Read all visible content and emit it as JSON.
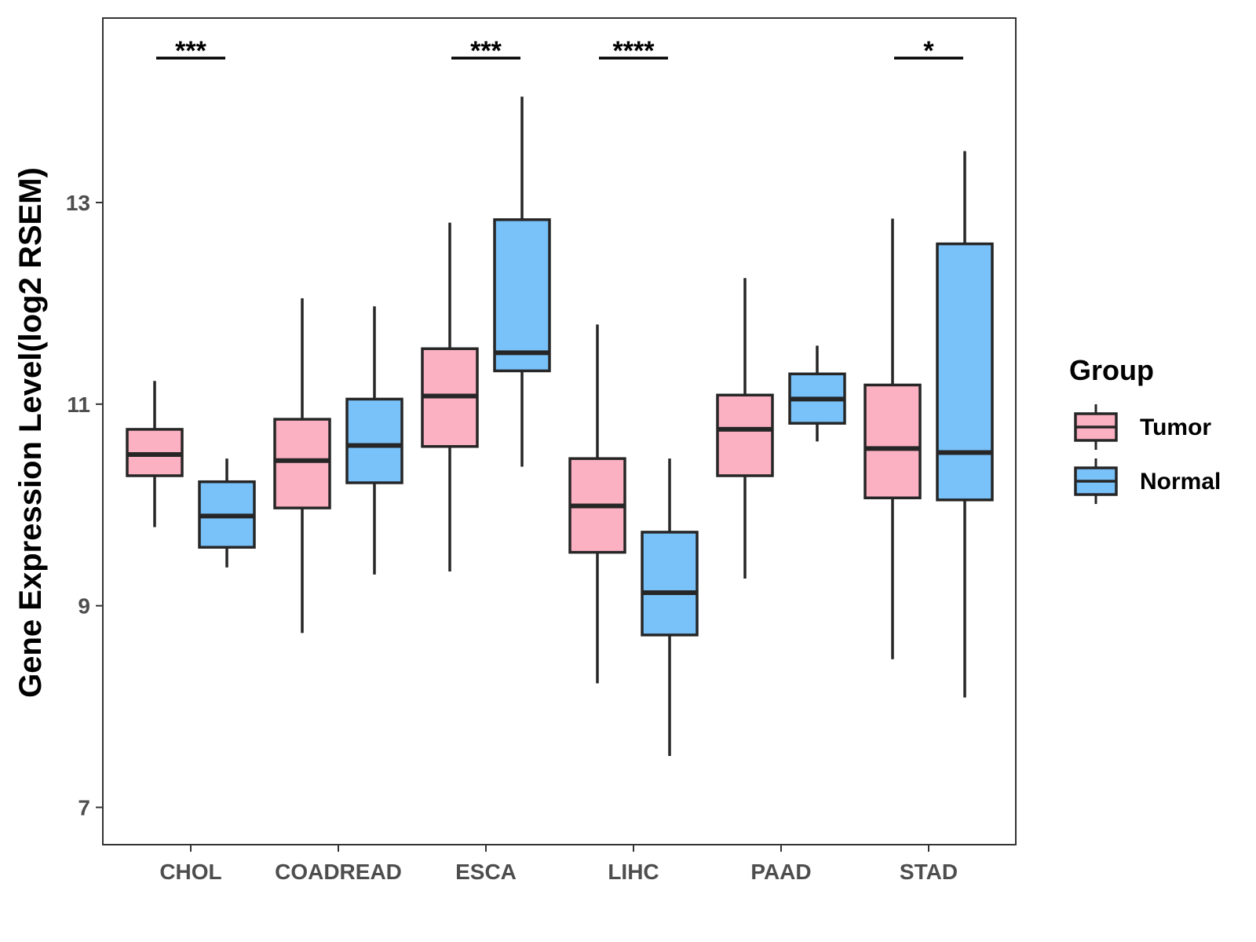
{
  "chart_data": {
    "type": "box",
    "ylabel": "Gene Expression Level(log2 RSEM)",
    "xlabel": "",
    "ylim": [
      6.63,
      14.83
    ],
    "yticks": [
      7,
      9,
      11,
      13
    ],
    "categories": [
      "CHOL",
      "COADREAD",
      "ESCA",
      "LIHC",
      "PAAD",
      "STAD"
    ],
    "legend": {
      "title": "Group",
      "placement": "right",
      "entries": [
        "Tumor",
        "Normal"
      ]
    },
    "colors": {
      "Tumor": "#FBB1C2",
      "Normal": "#79C1F9",
      "outline": "#262626"
    },
    "series": [
      {
        "name": "Tumor",
        "boxes": [
          {
            "category": "CHOL",
            "min": 9.78,
            "q1": 10.29,
            "median": 10.5,
            "q3": 10.75,
            "max": 11.23
          },
          {
            "category": "COADREAD",
            "min": 8.73,
            "q1": 9.97,
            "median": 10.44,
            "q3": 10.85,
            "max": 12.05
          },
          {
            "category": "ESCA",
            "min": 9.34,
            "q1": 10.58,
            "median": 11.08,
            "q3": 11.55,
            "max": 12.8
          },
          {
            "category": "LIHC",
            "min": 8.23,
            "q1": 9.53,
            "median": 9.99,
            "q3": 10.46,
            "max": 11.79
          },
          {
            "category": "PAAD",
            "min": 9.27,
            "q1": 10.29,
            "median": 10.75,
            "q3": 11.09,
            "max": 12.25
          },
          {
            "category": "STAD",
            "min": 8.47,
            "q1": 10.07,
            "median": 10.56,
            "q3": 11.19,
            "max": 12.84
          }
        ]
      },
      {
        "name": "Normal",
        "boxes": [
          {
            "category": "CHOL",
            "min": 9.38,
            "q1": 9.58,
            "median": 9.89,
            "q3": 10.23,
            "max": 10.46
          },
          {
            "category": "COADREAD",
            "min": 9.31,
            "q1": 10.22,
            "median": 10.59,
            "q3": 11.05,
            "max": 11.97
          },
          {
            "category": "ESCA",
            "min": 10.38,
            "q1": 11.33,
            "median": 11.51,
            "q3": 12.83,
            "max": 14.05
          },
          {
            "category": "LIHC",
            "min": 7.51,
            "q1": 8.71,
            "median": 9.13,
            "q3": 9.73,
            "max": 10.46
          },
          {
            "category": "PAAD",
            "min": 10.63,
            "q1": 10.81,
            "median": 11.05,
            "q3": 11.3,
            "max": 11.58
          },
          {
            "category": "STAD",
            "min": 8.09,
            "q1": 10.05,
            "median": 10.52,
            "q3": 12.59,
            "max": 13.51
          }
        ]
      }
    ],
    "significance": [
      {
        "category": "CHOL",
        "label": "***"
      },
      {
        "category": "ESCA",
        "label": "***"
      },
      {
        "category": "LIHC",
        "label": "****"
      },
      {
        "category": "STAD",
        "label": "*"
      }
    ]
  }
}
